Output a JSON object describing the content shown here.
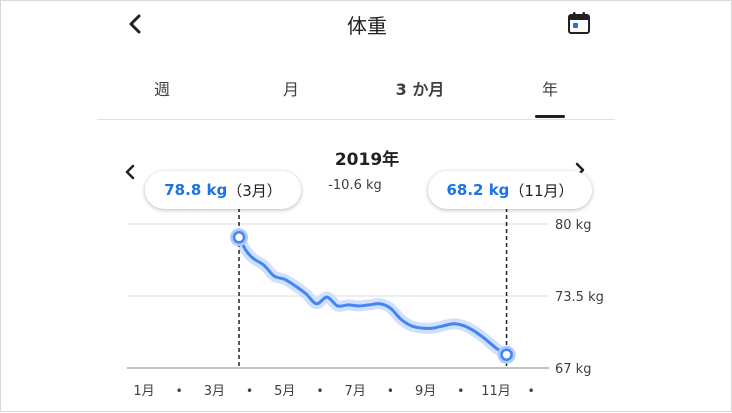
{
  "header": {
    "title": "体重",
    "back_icon": "chevron-left-icon",
    "calendar_icon": "calendar-icon"
  },
  "tabs": [
    {
      "label": "週",
      "bold": false
    },
    {
      "label": "月",
      "bold": false
    },
    {
      "label": "3 か月",
      "bold": true
    },
    {
      "label": "年",
      "bold": false,
      "selected": true
    }
  ],
  "summary": {
    "period": "2019年",
    "change": "-10.6 kg"
  },
  "tooltips": [
    {
      "value": "78.8 kg",
      "month": "（3月）"
    },
    {
      "value": "68.2 kg",
      "month": "（11月）"
    }
  ],
  "colors": {
    "accent": "#4285f4",
    "text": "#202124"
  },
  "chart_data": {
    "type": "line",
    "x_labels": [
      "1月",
      "•",
      "3月",
      "•",
      "5月",
      "•",
      "7月",
      "•",
      "9月",
      "•",
      "11月",
      "•"
    ],
    "y_ticks": [
      {
        "value": 80,
        "label": "80 kg"
      },
      {
        "value": 73.5,
        "label": "73.5 kg"
      },
      {
        "value": 67,
        "label": "67 kg"
      }
    ],
    "ylim": [
      67,
      80
    ],
    "xlim": [
      1,
      12
    ],
    "grid": true,
    "series": [
      {
        "x": [
          3.7,
          3.9,
          4.1,
          4.4,
          4.7,
          5.0,
          5.3,
          5.6,
          5.9,
          6.2,
          6.5,
          6.8,
          7.1,
          7.4,
          7.7,
          8.0,
          8.3,
          8.6,
          8.9,
          9.2,
          9.5,
          9.8,
          10.1,
          10.4,
          10.7,
          11.0,
          11.3
        ],
        "y": [
          78.8,
          77.6,
          76.9,
          76.3,
          75.3,
          75.0,
          74.4,
          73.7,
          72.8,
          73.4,
          72.6,
          72.7,
          72.6,
          72.7,
          72.8,
          72.4,
          71.4,
          70.8,
          70.6,
          70.6,
          70.8,
          71.0,
          70.8,
          70.3,
          69.6,
          68.8,
          68.2
        ]
      }
    ],
    "markers": [
      {
        "x": 3.7,
        "y": 78.8
      },
      {
        "x": 11.3,
        "y": 68.2
      }
    ]
  }
}
